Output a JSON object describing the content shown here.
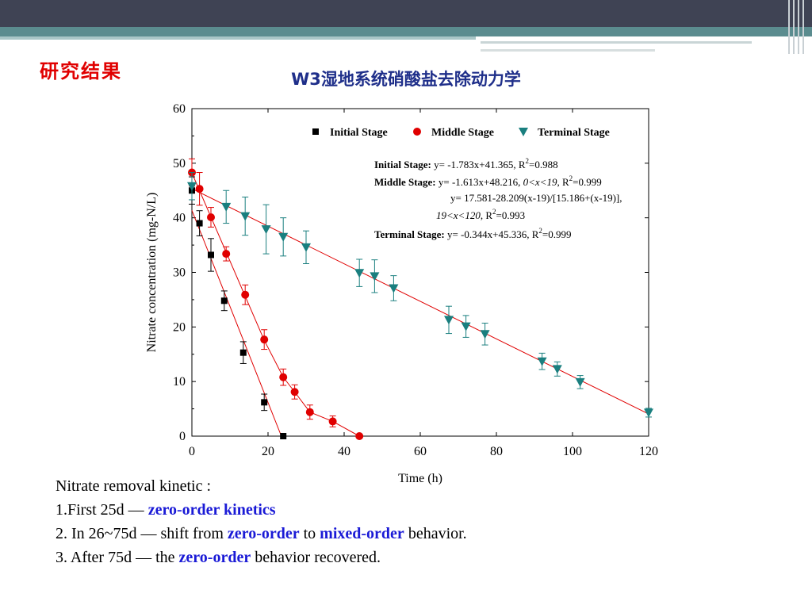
{
  "header": {
    "section_label": "研究结果",
    "title": "W3湿地系统硝酸盐去除动力学"
  },
  "colors": {
    "initial": "#000000",
    "middle": "#e00000",
    "terminal": "#1a7f7f",
    "fit_line": "#e00000",
    "highlight": "#1a1ad6"
  },
  "chart_data": {
    "type": "scatter",
    "xlabel": "Time (h)",
    "ylabel": "Nitrate concentration (mg-N/L)",
    "xlim": [
      0,
      120
    ],
    "ylim": [
      0,
      60
    ],
    "xticks": [
      0,
      20,
      40,
      60,
      80,
      100,
      120
    ],
    "yticks": [
      0,
      10,
      20,
      30,
      40,
      50,
      60
    ],
    "legend_position": "top-right",
    "series": [
      {
        "name": "Initial Stage",
        "marker": "square",
        "color": "#000000",
        "x": [
          0,
          2,
          5,
          8.5,
          13.5,
          19,
          24
        ],
        "y": [
          45,
          39,
          33.2,
          24.8,
          15.3,
          6.2,
          0
        ],
        "err": [
          2.5,
          2.3,
          3,
          1.8,
          2,
          1.5,
          0
        ]
      },
      {
        "name": "Middle Stage",
        "marker": "circle",
        "color": "#e00000",
        "x": [
          0,
          2,
          5,
          9,
          14,
          19,
          24,
          27,
          31,
          37,
          44
        ],
        "y": [
          48.3,
          45.3,
          40.1,
          33.4,
          25.9,
          17.7,
          10.8,
          8.1,
          4.4,
          2.7,
          0
        ],
        "err": [
          2.5,
          3,
          1.8,
          1.3,
          1.8,
          1.8,
          1.5,
          1.3,
          1.3,
          1,
          0
        ]
      },
      {
        "name": "Terminal Stage",
        "marker": "triangle-down",
        "color": "#1a7f7f",
        "x": [
          0,
          9,
          14,
          19.5,
          24,
          30,
          44,
          48,
          53,
          67.5,
          72,
          77,
          92,
          96,
          102,
          120
        ],
        "y": [
          45.8,
          42,
          40.3,
          37.9,
          36.5,
          34.6,
          29.9,
          29.3,
          27.1,
          21.3,
          20.1,
          18.7,
          13.7,
          12.3,
          9.9,
          4.3
        ],
        "err": [
          2.5,
          3,
          3.5,
          4.5,
          3.5,
          3,
          2.5,
          3,
          2.3,
          2.5,
          2,
          2,
          1.5,
          1.3,
          1.2,
          0.8
        ]
      }
    ],
    "fit_lines": [
      {
        "stage": "Initial Stage",
        "x": [
          0,
          23.5
        ],
        "y": [
          41.365,
          0
        ]
      },
      {
        "stage": "Middle Stage",
        "x": [
          0,
          19,
          24,
          27,
          31,
          37,
          44
        ],
        "y": [
          48.216,
          17.57,
          10.8,
          8.1,
          4.4,
          2.7,
          0
        ]
      },
      {
        "stage": "Terminal Stage",
        "x": [
          0,
          120
        ],
        "y": [
          45.336,
          4.06
        ]
      }
    ],
    "annotations": {
      "initial_label": "Initial Stage:",
      "initial_eq": " y= -1.783x+41.365, R",
      "initial_r2": "=0.988",
      "middle_label": "Middle Stage:",
      "middle_eq": " y= -1.613x+48.216, ",
      "middle_range": "0<x<19",
      "middle_r2": "=0.999",
      "middle_eq2": "y= 17.581-28.209(x-19)/[15.186+(x-19)],",
      "middle_range2": "19<x<120",
      "middle_r2b": "=0.993",
      "terminal_label": "Terminal Stage:",
      "terminal_eq": " y= -0.344x+45.336, R",
      "terminal_r2": "=0.999",
      "r_prefix": ", R",
      "sup": "2"
    }
  },
  "notes": {
    "line0": "Nitrate removal kinetic :",
    "line1_a": "1.First 25d — ",
    "line1_b": "zero-order kinetics",
    "line2_a": "2. In 26~75d — shift  from ",
    "line2_b": "zero-order",
    "line2_c": " to ",
    "line2_d": "mixed-order",
    "line2_e": " behavior.",
    "line3_a": "3. After 75d — the ",
    "line3_b": "zero-order",
    "line3_c": " behavior recovered."
  }
}
